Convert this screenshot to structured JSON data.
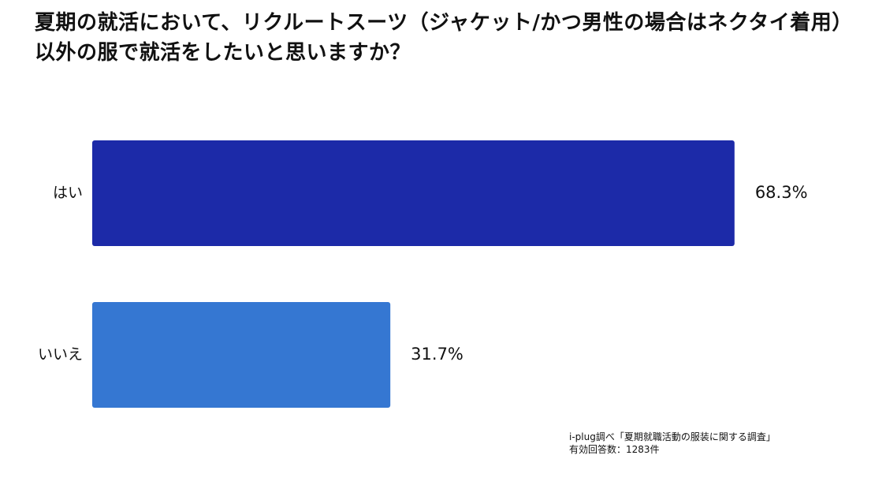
{
  "title_lines": [
    "夏期の就活において、リクルートスーツ（ジャケット/かつ男性の場合はネクタイ着用）",
    "以外の服で就活をしたいと思いますか？"
  ],
  "source_lines": [
    "i-plug調べ「夏期就職活動の服装に関する調査」",
    "有効回答数：1283件"
  ],
  "chart_data": {
    "type": "bar",
    "orientation": "horizontal",
    "title": "夏期の就活において、リクルートスーツ（ジャケット/かつ男性の場合はネクタイ着用）以外の服で就活をしたいと思いますか？",
    "categories": [
      "はい",
      "いいえ"
    ],
    "values": [
      68.3,
      31.7
    ],
    "value_labels": [
      "68.3%",
      "31.7%"
    ],
    "unit": "%",
    "xlim": [
      0,
      100
    ],
    "grid": false,
    "legend": "none",
    "colors": [
      "#1c2aa8",
      "#3577d2"
    ]
  }
}
